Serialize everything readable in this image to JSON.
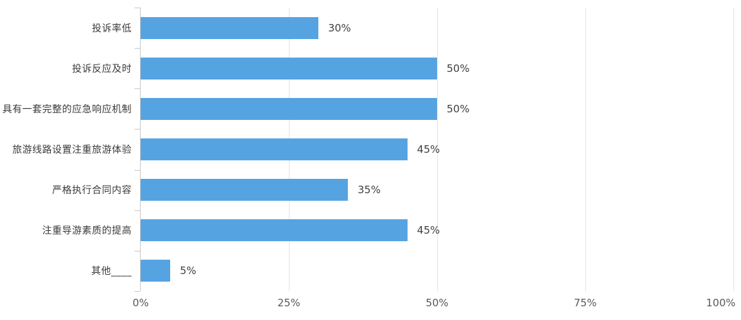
{
  "colors": {
    "bar": "#56a3e2",
    "grid": "#e4e4e4",
    "axis": "#c9c9c9",
    "category_label": "#3a3a3a",
    "value_label": "#404040",
    "x_tick_label": "#595959",
    "background": "#ffffff"
  },
  "chart_data": {
    "type": "bar",
    "orientation": "horizontal",
    "title": "",
    "xlabel": "",
    "ylabel": "",
    "categories": [
      "投诉率低",
      "投诉反应及时",
      "具有一套完整的应急响应机制",
      "旅游线路设置注重旅游体验",
      "严格执行合同内容",
      "注重导游素质的提高",
      "其他____"
    ],
    "values": [
      30,
      50,
      50,
      45,
      35,
      45,
      5
    ],
    "value_labels": [
      "30%",
      "50%",
      "50%",
      "45%",
      "35%",
      "45%",
      "5%"
    ],
    "xlim": [
      0,
      100
    ],
    "x_tick_values": [
      0,
      25,
      50,
      75,
      100
    ],
    "x_tick_labels": [
      "0%",
      "25%",
      "50%",
      "75%",
      "100%"
    ],
    "grid": true,
    "legend": false
  }
}
